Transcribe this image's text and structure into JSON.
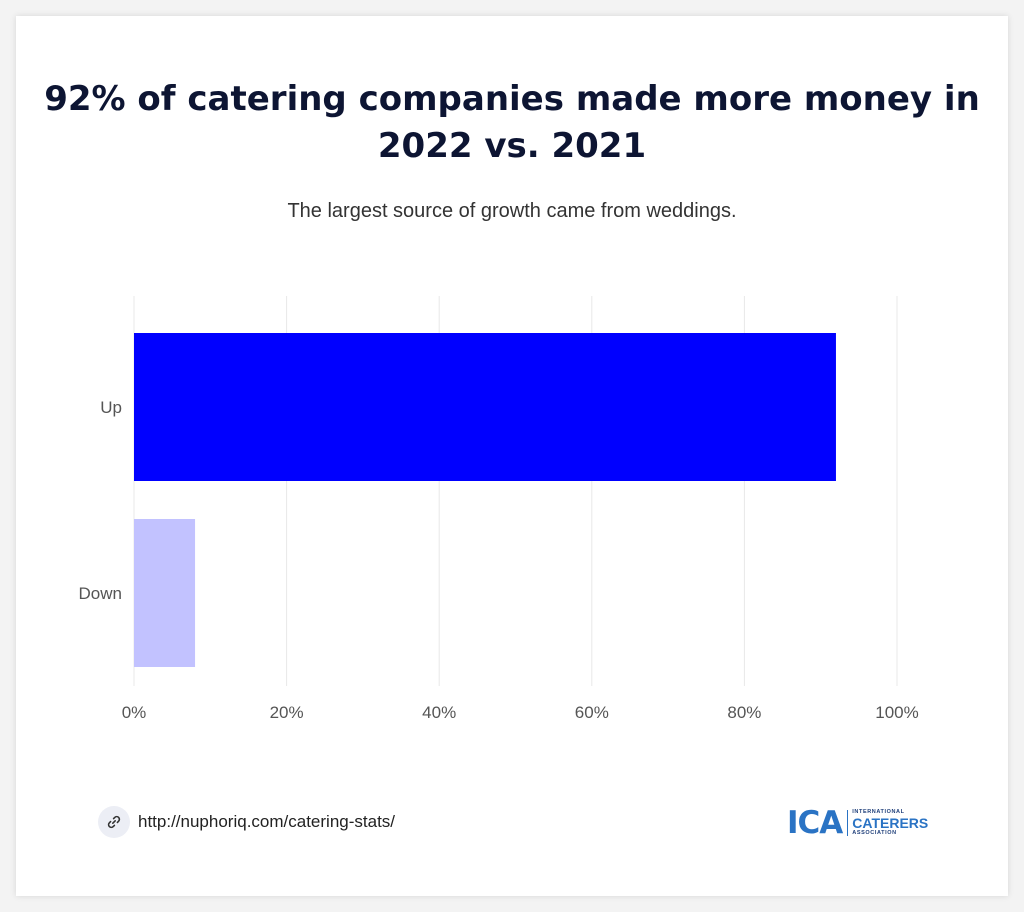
{
  "title": "92% of catering companies made more money in 2022 vs. 2021",
  "subtitle": "The largest source of growth came from weddings.",
  "chart_data": {
    "type": "bar",
    "orientation": "horizontal",
    "categories": [
      "Up",
      "Down"
    ],
    "values": [
      92,
      8
    ],
    "colors": [
      "#0000ff",
      "#c2c2ff"
    ],
    "xlim": [
      0,
      100
    ],
    "xticks": [
      "0%",
      "20%",
      "40%",
      "60%",
      "80%",
      "100%"
    ],
    "xtick_values": [
      0,
      20,
      40,
      60,
      80,
      100
    ],
    "grid": true,
    "gridline_color": "#e8e8e8"
  },
  "footer": {
    "link_icon": "link-icon",
    "url": "http://nuphoriq.com/catering-stats/"
  },
  "logo": {
    "mark": "ICA",
    "line1": "INTERNATIONAL",
    "line2": "CATERERS",
    "line3": "ASSOCIATION",
    "color": "#2a73c4"
  }
}
